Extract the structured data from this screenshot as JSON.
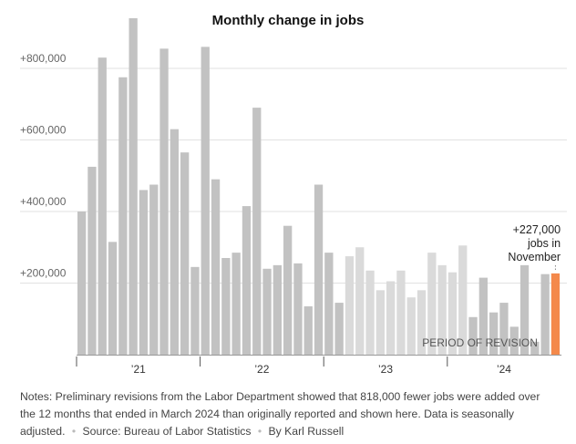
{
  "chart_data": {
    "type": "bar",
    "title": "Monthly change in jobs",
    "categories": [
      "Jan 2021",
      "Feb 2021",
      "Mar 2021",
      "Apr 2021",
      "May 2021",
      "Jun 2021",
      "Jul 2021",
      "Aug 2021",
      "Sep 2021",
      "Oct 2021",
      "Nov 2021",
      "Dec 2021",
      "Jan 2022",
      "Feb 2022",
      "Mar 2022",
      "Apr 2022",
      "May 2022",
      "Jun 2022",
      "Jul 2022",
      "Aug 2022",
      "Sep 2022",
      "Oct 2022",
      "Nov 2022",
      "Dec 2022",
      "Jan 2023",
      "Feb 2023",
      "Mar 2023",
      "Apr 2023",
      "May 2023",
      "Jun 2023",
      "Jul 2023",
      "Aug 2023",
      "Sep 2023",
      "Oct 2023",
      "Nov 2023",
      "Dec 2023",
      "Jan 2024",
      "Feb 2024",
      "Mar 2024",
      "Apr 2024",
      "May 2024",
      "Jun 2024",
      "Jul 2024",
      "Aug 2024",
      "Sep 2024",
      "Oct 2024",
      "Nov 2024"
    ],
    "values": [
      400000,
      525000,
      830000,
      315000,
      775000,
      940000,
      460000,
      475000,
      855000,
      630000,
      565000,
      245000,
      860000,
      490000,
      270000,
      285000,
      415000,
      690000,
      240000,
      250000,
      360000,
      255000,
      135000,
      475000,
      285000,
      145000,
      275000,
      300000,
      235000,
      180000,
      205000,
      235000,
      160000,
      180000,
      285000,
      250000,
      230000,
      305000,
      105000,
      215000,
      118000,
      145000,
      78000,
      250000,
      36000,
      225000,
      227000
    ],
    "bar_styles": [
      "normal",
      "normal",
      "normal",
      "normal",
      "normal",
      "normal",
      "normal",
      "normal",
      "normal",
      "normal",
      "normal",
      "normal",
      "normal",
      "normal",
      "normal",
      "normal",
      "normal",
      "normal",
      "normal",
      "normal",
      "normal",
      "normal",
      "normal",
      "normal",
      "normal",
      "normal",
      "revision",
      "revision",
      "revision",
      "revision",
      "revision",
      "revision",
      "revision",
      "revision",
      "revision",
      "revision",
      "revision",
      "revision",
      "normal",
      "normal",
      "normal",
      "normal",
      "normal",
      "normal",
      "normal",
      "normal",
      "highlight"
    ],
    "colors": {
      "normal": "#c2c2c2",
      "revision": "#dadada",
      "highlight": "#f4894b",
      "grid": "#e2e2e2",
      "axis": "#555555"
    },
    "ylim": [
      0,
      940000
    ],
    "yticks": [
      200000,
      400000,
      600000,
      800000
    ],
    "ytick_labels": [
      "+200,000",
      "+400,000",
      "+600,000",
      "+800,000"
    ],
    "x_groups": [
      {
        "label": "’21",
        "start": 0,
        "end": 11
      },
      {
        "label": "’22",
        "start": 12,
        "end": 23
      },
      {
        "label": "’23",
        "start": 24,
        "end": 35
      },
      {
        "label": "’24",
        "start": 36,
        "end": 46
      }
    ],
    "annotations": {
      "revision_label": "PERIOD OF REVISION",
      "latest_label": [
        "+227,000",
        "jobs in",
        "November"
      ]
    },
    "grid": true,
    "xlabel": "",
    "ylabel": ""
  },
  "notes": {
    "text": "Notes: Preliminary revisions from the Labor Department showed that 818,000 fewer jobs were added over the 12 months that ended in March 2024 than originally reported and shown here. Data is seasonally adjusted.",
    "source": "Source: Bureau of Labor Statistics",
    "byline": "By Karl Russell",
    "separator": "•"
  }
}
